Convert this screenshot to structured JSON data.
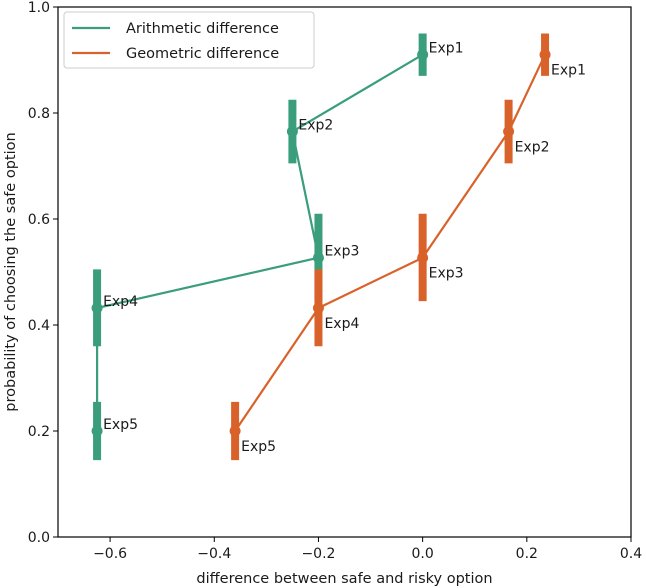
{
  "chart_data": {
    "type": "line",
    "xlabel": "difference between safe and risky option",
    "ylabel": "probability of choosing the safe option",
    "xlim": [
      -0.7,
      0.4
    ],
    "ylim": [
      0.0,
      1.0
    ],
    "x_ticks": [
      -0.6,
      -0.4,
      -0.2,
      0.0,
      0.2,
      0.4
    ],
    "x_tick_labels": [
      "−0.6",
      "−0.4",
      "−0.2",
      "0.0",
      "0.2",
      "0.4"
    ],
    "y_ticks": [
      0.0,
      0.2,
      0.4,
      0.6,
      0.8,
      1.0
    ],
    "y_tick_labels": [
      "0.0",
      "0.2",
      "0.4",
      "0.6",
      "0.8",
      "1.0"
    ],
    "grid": false,
    "legend_position": "top-left",
    "series": [
      {
        "name": "Arithmetic difference",
        "color": "#3a9d7b",
        "points": [
          {
            "label": "Exp1",
            "x": 0.0,
            "y": 0.91,
            "err_low": 0.87,
            "err_high": 0.95
          },
          {
            "label": "Exp2",
            "x": -0.25,
            "y": 0.765,
            "err_low": 0.705,
            "err_high": 0.825
          },
          {
            "label": "Exp3",
            "x": -0.2,
            "y": 0.527,
            "err_low": 0.445,
            "err_high": 0.61
          },
          {
            "label": "Exp4",
            "x": -0.625,
            "y": 0.432,
            "err_low": 0.36,
            "err_high": 0.505
          },
          {
            "label": "Exp5",
            "x": -0.625,
            "y": 0.2,
            "err_low": 0.145,
            "err_high": 0.255
          }
        ]
      },
      {
        "name": "Geometric difference",
        "color": "#d9622b",
        "points": [
          {
            "label": "Exp1",
            "x": 0.235,
            "y": 0.91,
            "err_low": 0.87,
            "err_high": 0.95
          },
          {
            "label": "Exp2",
            "x": 0.165,
            "y": 0.765,
            "err_low": 0.705,
            "err_high": 0.825
          },
          {
            "label": "Exp3",
            "x": 0.0,
            "y": 0.527,
            "err_low": 0.445,
            "err_high": 0.61
          },
          {
            "label": "Exp4",
            "x": -0.2,
            "y": 0.432,
            "err_low": 0.36,
            "err_high": 0.505
          },
          {
            "label": "Exp5",
            "x": -0.36,
            "y": 0.2,
            "err_low": 0.145,
            "err_high": 0.255
          }
        ]
      }
    ]
  }
}
